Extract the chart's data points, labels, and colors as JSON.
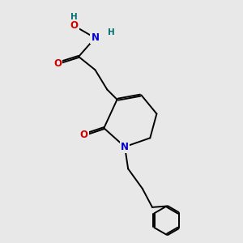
{
  "bg_color": "#e8e8e8",
  "bond_color": "#000000",
  "atom_colors": {
    "O": "#cc0000",
    "N": "#0000cc",
    "H": "#007070",
    "C": "#000000"
  },
  "line_width": 1.4,
  "font_size_atom": 8.5,
  "font_size_H": 7.5
}
